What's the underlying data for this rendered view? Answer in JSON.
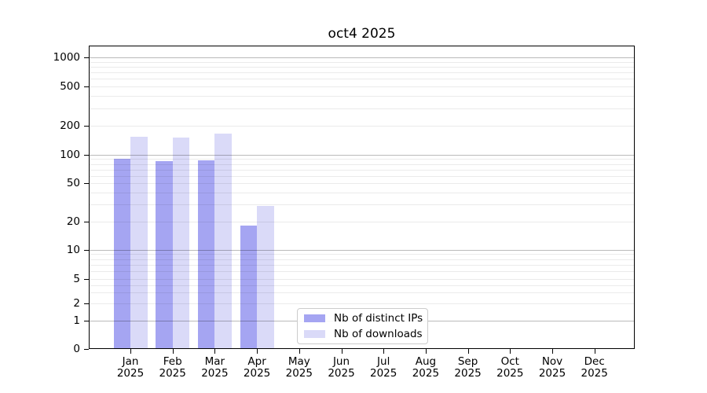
{
  "title": "oct4 2025",
  "chart_data": {
    "type": "bar",
    "title": "oct4 2025",
    "categories": [
      "Jan",
      "Feb",
      "Mar",
      "Apr",
      "May",
      "Jun",
      "Jul",
      "Aug",
      "Sep",
      "Oct",
      "Nov",
      "Dec"
    ],
    "category_year": "2025",
    "series": [
      {
        "name": "Nb of distinct IPs",
        "color": "#a5a5f2",
        "values": [
          90,
          85,
          87,
          18,
          0,
          0,
          0,
          0,
          0,
          0,
          0,
          0
        ]
      },
      {
        "name": "Nb of downloads",
        "color": "#dadaf8",
        "values": [
          153,
          151,
          165,
          29,
          0,
          0,
          0,
          0,
          0,
          0,
          0,
          0
        ]
      }
    ],
    "yticks": [
      0,
      1,
      2,
      5,
      10,
      20,
      50,
      100,
      200,
      500,
      1000
    ],
    "ytick_labels": [
      "0",
      "1",
      "2",
      "5",
      "10",
      "20",
      "50",
      "100",
      "200",
      "500",
      "1000"
    ],
    "yscale": "log-like-with-zero",
    "ylim": [
      0,
      1350
    ],
    "xlabel": "",
    "ylabel": "",
    "grid": true,
    "legend_position": "lower-center"
  }
}
